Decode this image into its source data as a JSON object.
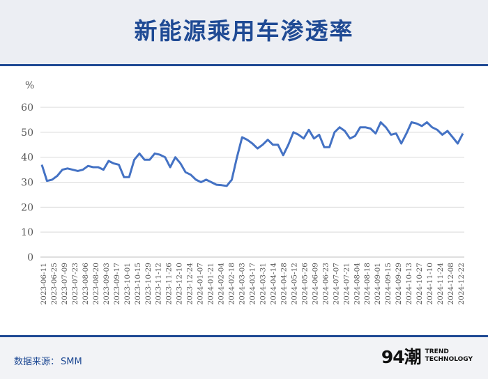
{
  "header": {
    "title": "新能源乘用车渗透率"
  },
  "footer": {
    "source_label": "数据来源：",
    "source_value": "SMM",
    "brand_mark": "94潮",
    "brand_line1": "TREND",
    "brand_line2": "TECHNOLOGY"
  },
  "colors": {
    "accent": "#1f4a94",
    "line": "#4472c4",
    "grid": "#d9d9d9",
    "axis_text": "#595959"
  },
  "chart_data": {
    "type": "line",
    "ylabel": "%",
    "ylim": [
      0,
      60
    ],
    "yticks": [
      0,
      10,
      20,
      30,
      40,
      50,
      60
    ],
    "grid": true,
    "x_ticks": [
      "2023-06-11",
      "2023-06-25",
      "2023-07-09",
      "2023-07-23",
      "2023-08-06",
      "2023-08-20",
      "2023-09-03",
      "2023-09-17",
      "2023-10-01",
      "2023-10-15",
      "2023-10-29",
      "2023-11-12",
      "2023-11-26",
      "2023-12-10",
      "2023-12-24",
      "2024-01-07",
      "2024-01-21",
      "2024-02-04",
      "2024-02-18",
      "2024-03-03",
      "2024-03-17",
      "2024-03-31",
      "2024-04-14",
      "2024-04-28",
      "2024-05-12",
      "2024-05-26",
      "2024-06-09",
      "2024-06-23",
      "2024-07-07",
      "2024-07-21",
      "2024-08-04",
      "2024-08-18",
      "2024-09-01",
      "2024-09-15",
      "2024-09-29",
      "2024-10-13",
      "2024-10-27",
      "2024-11-10",
      "2024-11-24",
      "2024-12-08",
      "2024-12-22"
    ],
    "series": [
      {
        "values": [
          37,
          30.5,
          31,
          32.5,
          35,
          35.5,
          35,
          34.5,
          35,
          36.5,
          36,
          36,
          35,
          38.5,
          37.5,
          37,
          32,
          32,
          39,
          41.5,
          39,
          39,
          41.5,
          41,
          40,
          36,
          40,
          37.5,
          34,
          33,
          31,
          30,
          31,
          30,
          29,
          28.8,
          28.5,
          31,
          40,
          48,
          47,
          45.5,
          43.5,
          45,
          47,
          45,
          45,
          40.8,
          45,
          50,
          49,
          47.5,
          51,
          47.5,
          49,
          44,
          44,
          50,
          52,
          50.5,
          47.5,
          48.5,
          52,
          52,
          51.5,
          49.5,
          54,
          52,
          49,
          49.5,
          45.5,
          49.5,
          54,
          53.5,
          52.5,
          54,
          52,
          51,
          49,
          50.5,
          48,
          45.5,
          49.5
        ]
      }
    ]
  }
}
